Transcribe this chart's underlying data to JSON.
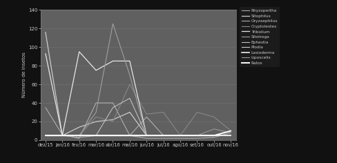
{
  "x_labels": [
    "dez/15",
    "jan/16",
    "fev/16",
    "mar/16",
    "abr/16",
    "mai/16",
    "jun/16",
    "jul/16",
    "ago/16",
    "set/16",
    "out/16",
    "nov/16"
  ],
  "series": [
    {
      "name": "Rhyzopertha",
      "color": "#aaaaaa",
      "lw": 0.8,
      "data": [
        5,
        5,
        3,
        5,
        5,
        5,
        2,
        2,
        2,
        2,
        3,
        8
      ]
    },
    {
      "name": "Sitophilus",
      "color": "#cccccc",
      "lw": 0.9,
      "data": [
        116,
        5,
        14,
        20,
        22,
        30,
        5,
        5,
        5,
        5,
        5,
        5
      ]
    },
    {
      "name": "Oryzaephilus",
      "color": "#b0b0b0",
      "lw": 0.8,
      "data": [
        35,
        6,
        2,
        40,
        40,
        5,
        25,
        5,
        5,
        5,
        5,
        5
      ]
    },
    {
      "name": "Cryptolestes",
      "color": "#888888",
      "lw": 0.8,
      "data": [
        5,
        5,
        5,
        25,
        20,
        60,
        28,
        30,
        5,
        30,
        25,
        10
      ]
    },
    {
      "name": "Tribolium",
      "color": "#e8e8e8",
      "lw": 0.9,
      "data": [
        93,
        5,
        95,
        75,
        85,
        85,
        5,
        5,
        5,
        5,
        5,
        5
      ]
    },
    {
      "name": "Sitotroga",
      "color": "#a0a0a0",
      "lw": 0.8,
      "data": [
        5,
        5,
        5,
        30,
        125,
        70,
        5,
        5,
        5,
        5,
        5,
        5
      ]
    },
    {
      "name": "Ephestia",
      "color": "#c0c0c0",
      "lw": 0.8,
      "data": [
        5,
        5,
        5,
        5,
        35,
        45,
        5,
        5,
        5,
        5,
        5,
        5
      ]
    },
    {
      "name": "Plodia",
      "color": "#d0d0d0",
      "lw": 0.8,
      "data": [
        5,
        5,
        5,
        5,
        5,
        5,
        5,
        5,
        5,
        5,
        5,
        5
      ]
    },
    {
      "name": "Lasioderma",
      "color": "#f0f0f0",
      "lw": 1.2,
      "data": [
        5,
        5,
        5,
        5,
        5,
        5,
        5,
        5,
        5,
        5,
        5,
        5
      ]
    },
    {
      "name": "Liposcelis",
      "color": "#989898",
      "lw": 0.8,
      "data": [
        5,
        5,
        5,
        5,
        5,
        5,
        5,
        5,
        5,
        5,
        12,
        8
      ]
    },
    {
      "name": "Ratos",
      "color": "#ffffff",
      "lw": 1.4,
      "data": [
        5,
        5,
        5,
        5,
        5,
        5,
        5,
        5,
        5,
        5,
        5,
        10
      ]
    }
  ],
  "ylabel": "Número de insetos",
  "ylim": [
    0,
    140
  ],
  "yticks": [
    0,
    20,
    40,
    60,
    80,
    100,
    120,
    140
  ],
  "bg_outer": "#111111",
  "bg_plot": "#606060",
  "text_color": "#cccccc",
  "grid_color": "#808080",
  "legend_bg": "#1e1e1e",
  "fig_width": 4.88,
  "fig_height": 2.36,
  "dpi": 100
}
